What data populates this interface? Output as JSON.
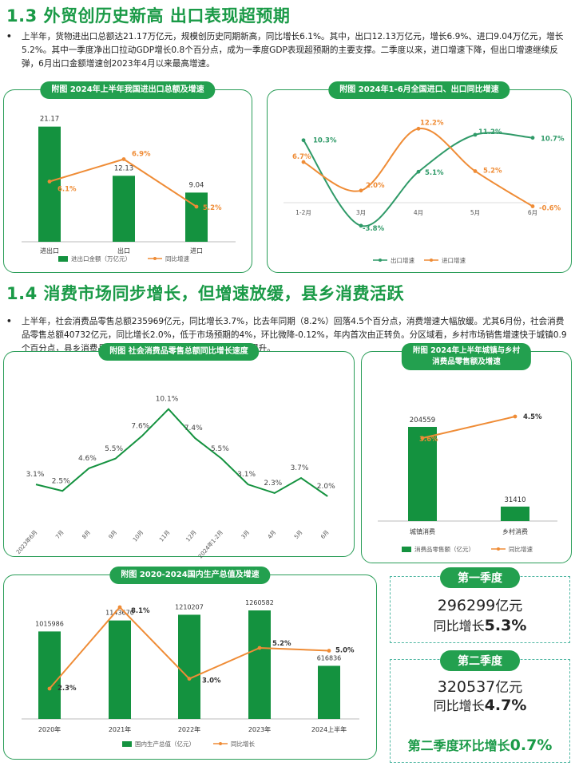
{
  "section13": {
    "title": "1.3  外贸创历史新高 出口表现超预期",
    "bullet": "•",
    "text": "上半年，货物进出口总额达21.17万亿元，规模创历史同期新高，同比增长6.1%。其中，出口12.13万亿元，增长6.9%、进口9.04万亿元，增长5.2%。其中一季度净出口拉动GDP增长0.8个百分点，成为一季度GDP表现超预期的主要支撑。二季度以来，进口增速下降，但出口增速继续反弹，6月出口金额增速创2023年4月以来最高增速。"
  },
  "section14": {
    "title": "1.4  消费市场同步增长，但增速放缓，县乡消费活跃",
    "bullet": "•",
    "text": "上半年，社会消费品零售总额235969亿元，同比增长3.7%，比去年同期（8.2%）回落4.5个百分点，消费增速大幅放缓。尤其6月份，社会消费品零售总额40732亿元，同比增长2.0%，低于市场预期的4%，环比微降-0.12%，年内首次由正转负。分区域看，乡村市场销售增速快于城镇0.9个百分点，县乡消费品零售额占社会消费品零售总额比重稳步提升。"
  },
  "colors": {
    "green": "#1a9a47",
    "bar": "#14923f",
    "orange": "#ef8c36",
    "teal": "#2f9a68"
  },
  "chart_data": [
    {
      "id": "trade_total",
      "type": "bar+line",
      "title": "附图 2024年上半年我国进出口总额及增速",
      "categories": [
        "进出口",
        "出口",
        "进口"
      ],
      "series": [
        {
          "name": "进出口金额（万亿元）",
          "kind": "bar",
          "values": [
            21.17,
            12.13,
            9.04
          ],
          "labels": [
            "21.17",
            "12.13",
            "9.04"
          ]
        },
        {
          "name": "同比增速",
          "kind": "line",
          "values": [
            6.1,
            6.9,
            5.2
          ],
          "labels": [
            "6.1%",
            "6.9%",
            "5.2%"
          ]
        }
      ]
    },
    {
      "id": "trade_monthly",
      "type": "line",
      "title": "附图 2024年1-6月全国进口、出口同比增速",
      "categories": [
        "1-2月",
        "3月",
        "4月",
        "5月",
        "6月"
      ],
      "series": [
        {
          "name": "出口增速",
          "values": [
            10.3,
            -3.8,
            5.1,
            11.2,
            10.7
          ],
          "labels": [
            "10.3%",
            "-3.8%",
            "5.1%",
            "11.2%",
            "10.7%"
          ]
        },
        {
          "name": "进口增速",
          "values": [
            6.7,
            2.0,
            12.2,
            5.2,
            -0.6
          ],
          "labels": [
            "6.7%",
            "2.0%",
            "12.2%",
            "5.2%",
            "-0.6%"
          ]
        }
      ]
    },
    {
      "id": "retail_growth",
      "type": "line",
      "title": "附图 社会消费品零售总额同比增长速度",
      "categories": [
        "2023年6月",
        "7月",
        "8月",
        "9月",
        "10月",
        "11月",
        "12月",
        "2024年1-2月",
        "3月",
        "4月",
        "5月",
        "6月"
      ],
      "series": [
        {
          "name": "",
          "values": [
            3.1,
            2.5,
            4.6,
            5.5,
            7.6,
            10.1,
            7.4,
            5.5,
            3.1,
            2.3,
            3.7,
            2.0
          ],
          "labels": [
            "3.1%",
            "2.5%",
            "4.6%",
            "5.5%",
            "7.6%",
            "10.1%",
            "7.4%",
            "5.5%",
            "3.1%",
            "2.3%",
            "3.7%",
            "2.0%"
          ]
        }
      ]
    },
    {
      "id": "urban_rural",
      "type": "bar+line",
      "title_line1": "附图 2024年上半年城镇与乡村",
      "title_line2": "消费品零售额及增速",
      "categories": [
        "城镇消费",
        "乡村消费"
      ],
      "series": [
        {
          "name": "消费品零售额（亿元）",
          "kind": "bar",
          "values": [
            204559,
            31410
          ],
          "labels": [
            "204559",
            "31410"
          ]
        },
        {
          "name": "同比增速",
          "kind": "line",
          "values": [
            3.6,
            4.5
          ],
          "labels": [
            "3.6%",
            "4.5%"
          ]
        }
      ]
    },
    {
      "id": "gdp",
      "type": "bar+line",
      "title": "附图 2020-2024国内生产总值及增速",
      "categories": [
        "2020年",
        "2021年",
        "2022年",
        "2023年",
        "2024上半年"
      ],
      "series": [
        {
          "name": "国内生产总值（亿元）",
          "kind": "bar",
          "values": [
            1015986,
            1143670,
            1210207,
            1260582,
            616836
          ],
          "labels": [
            "1015986",
            "1143670",
            "1210207",
            "1260582",
            "616836"
          ]
        },
        {
          "name": "同比增长",
          "kind": "line",
          "values": [
            2.3,
            8.1,
            3.0,
            5.2,
            5.0
          ],
          "labels": [
            "2.3%",
            "8.1%",
            "3.0%",
            "5.2%",
            "5.0%"
          ]
        }
      ]
    }
  ],
  "q1": {
    "label": "第一季度",
    "value": "296299",
    "unit": "亿元",
    "growth_prefix": "同比增长",
    "growth": "5.3%"
  },
  "q2": {
    "label": "第二季度",
    "value": "320537",
    "unit": "亿元",
    "growth_prefix": "同比增长",
    "growth": "4.7%",
    "qoq_prefix": "第二季度环比增长",
    "qoq": "0.7%"
  }
}
